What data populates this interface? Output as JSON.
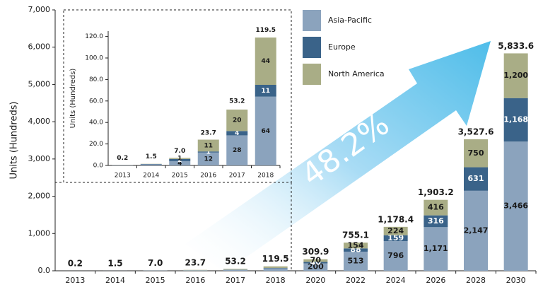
{
  "chart_data": [
    {
      "type": "stacked-bar",
      "ylabel": "Units (Hundreds)",
      "annotation": "48.2%",
      "categories": [
        "2013",
        "2014",
        "2015",
        "2016",
        "2017",
        "2018",
        "2020",
        "2022",
        "2024",
        "2026",
        "2028",
        "2030"
      ],
      "series": [
        {
          "name": "Asia-Pacific",
          "color": "#8ba3bd",
          "label_color": "#1a1a1a",
          "values": [
            0.2,
            1,
            4,
            12,
            28,
            64,
            200,
            513,
            796,
            1171,
            2147,
            3466
          ],
          "value_labels": [
            null,
            null,
            null,
            null,
            null,
            null,
            "200",
            "513",
            "796",
            "1,171",
            "2,147",
            "3,466"
          ]
        },
        {
          "name": "Europe",
          "color": "#3a6389",
          "label_color": "#ffffff",
          "values": [
            0,
            0.3,
            2,
            1,
            4,
            11,
            40,
            88,
            159,
            316,
            631,
            1168
          ],
          "value_labels": [
            null,
            null,
            null,
            null,
            null,
            null,
            "40",
            "88",
            "159",
            "316",
            "631",
            "1,168"
          ]
        },
        {
          "name": "North America",
          "color": "#a9ad86",
          "label_color": "#1a1a1a",
          "values": [
            0,
            0.2,
            1,
            11,
            20,
            44,
            70,
            154,
            224,
            416,
            750,
            1200
          ],
          "value_labels": [
            null,
            null,
            null,
            null,
            null,
            null,
            "70",
            "154",
            "224",
            "416",
            "750",
            "1,200"
          ]
        }
      ],
      "totals": [
        0.2,
        1.5,
        7.0,
        23.7,
        53.2,
        119.5,
        309.9,
        755.1,
        1178.4,
        1903.2,
        3527.6,
        5833.6
      ],
      "total_labels": [
        "0.2",
        "1.5",
        "7.0",
        "23.7",
        "53.2",
        "119.5",
        "309.9",
        "755.1",
        "1,178.4",
        "1,903.2",
        "3,527.6",
        "5,833.6"
      ],
      "ylim": [
        0,
        7000
      ],
      "yticks": [
        {
          "value": 0,
          "label": "0.0"
        },
        {
          "value": 1000,
          "label": "1,000"
        },
        {
          "value": 2000,
          "label": "2,000"
        },
        {
          "value": 3000,
          "label": "3,000"
        },
        {
          "value": 4000,
          "label": "4,000"
        },
        {
          "value": 5000,
          "label": "5,000"
        },
        {
          "value": 6000,
          "label": "6,000"
        },
        {
          "value": 7000,
          "label": "7,000"
        }
      ],
      "legend": "top-right"
    },
    {
      "type": "stacked-bar",
      "ylabel": "Units (Hundreds)",
      "categories": [
        "2013",
        "2014",
        "2015",
        "2016",
        "2017",
        "2018"
      ],
      "series": [
        {
          "name": "Asia-Pacific",
          "color": "#8ba3bd",
          "label_color": "#1a1a1a",
          "values": [
            0.2,
            1,
            4,
            12,
            28,
            64
          ],
          "value_labels": [
            null,
            null,
            "4",
            "12",
            "28",
            "64"
          ]
        },
        {
          "name": "Europe",
          "color": "#3a6389",
          "label_color": "#ffffff",
          "values": [
            0,
            0.3,
            2,
            1,
            4,
            11
          ],
          "value_labels": [
            null,
            null,
            "2",
            "1",
            "4",
            "11"
          ]
        },
        {
          "name": "North America",
          "color": "#a9ad86",
          "label_color": "#1a1a1a",
          "values": [
            0,
            0.2,
            1,
            11,
            20,
            44
          ],
          "value_labels": [
            null,
            null,
            "1",
            "11",
            "20",
            "44"
          ]
        }
      ],
      "totals": [
        0.2,
        1.5,
        7.0,
        23.7,
        53.2,
        119.5
      ],
      "total_labels": [
        "0.2",
        "1.5",
        "7.0",
        "23.7",
        "53.2",
        "119.5"
      ],
      "ylim": [
        0,
        125
      ],
      "yticks": [
        {
          "value": 0,
          "label": "0.0"
        },
        {
          "value": 20,
          "label": "20.0"
        },
        {
          "value": 40,
          "label": "40.0"
        },
        {
          "value": 60,
          "label": "60.0"
        },
        {
          "value": 80,
          "label": "80.0"
        },
        {
          "value": 100,
          "label": "100.0"
        },
        {
          "value": 120,
          "label": "120.0"
        }
      ]
    }
  ]
}
